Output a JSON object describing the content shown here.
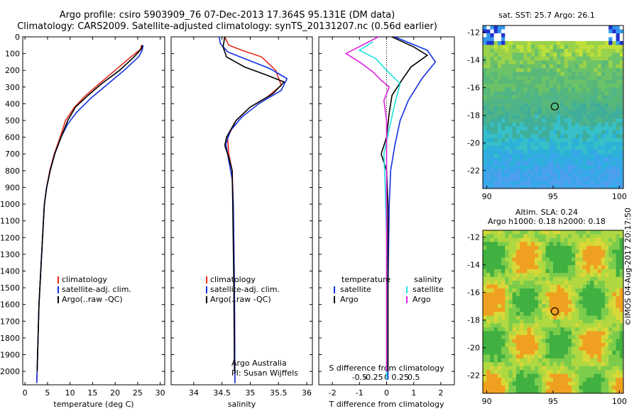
{
  "header": {
    "title1": "Argo profile: csiro 5903909_76 07-Dec-2013 17.364S 95.131E (DM data)",
    "title2": "Climatology: CARS2009. Satellite-adjusted climatology: synTS_20131207.nc (0.56d earlier)"
  },
  "colors": {
    "climatology": "#e8291d",
    "satellite": "#1030e0",
    "argo": "#000000",
    "sal_satellite": "#20e0e0",
    "sal_argo": "#e020e0"
  },
  "chart_data": [
    {
      "type": "line",
      "name_key": "temperature-profile",
      "xlabel": "temperature (deg C)",
      "ylabel": "",
      "xlim": [
        -0.5,
        31
      ],
      "ylim": [
        2080,
        0
      ],
      "xticks": [
        0,
        5,
        10,
        15,
        20,
        25,
        30
      ],
      "yticks": [
        0,
        100,
        200,
        300,
        400,
        500,
        600,
        700,
        800,
        900,
        1000,
        1100,
        1200,
        1300,
        1400,
        1500,
        1600,
        1700,
        1800,
        1900,
        2000
      ],
      "legend": {
        "position": "lower-middle",
        "entries": [
          "climatology",
          "satellite-adj. clim.",
          "Argo(..raw -QC)"
        ]
      },
      "series": [
        {
          "name": "climatology",
          "color": "#e8291d",
          "points": [
            [
              25.9,
              50
            ],
            [
              25.6,
              75
            ],
            [
              23.5,
              120
            ],
            [
              20.0,
              200
            ],
            [
              16.5,
              280
            ],
            [
              13.5,
              350
            ],
            [
              11.0,
              420
            ],
            [
              9.0,
              500
            ],
            [
              7.8,
              600
            ],
            [
              6.5,
              700
            ],
            [
              5.5,
              800
            ],
            [
              4.8,
              900
            ],
            [
              4.3,
              1000
            ],
            [
              3.9,
              1200
            ],
            [
              3.5,
              1400
            ],
            [
              3.1,
              1600
            ],
            [
              2.9,
              1800
            ],
            [
              2.7,
              2000
            ],
            [
              2.6,
              2070
            ]
          ]
        },
        {
          "name": "satellite-adj. clim.",
          "color": "#1030e0",
          "points": [
            [
              26.2,
              50
            ],
            [
              26.0,
              80
            ],
            [
              25.2,
              120
            ],
            [
              22.0,
              200
            ],
            [
              18.0,
              290
            ],
            [
              14.5,
              370
            ],
            [
              11.5,
              450
            ],
            [
              9.5,
              520
            ],
            [
              8.0,
              600
            ],
            [
              6.6,
              700
            ],
            [
              5.6,
              800
            ],
            [
              4.8,
              900
            ],
            [
              4.3,
              1000
            ],
            [
              3.9,
              1200
            ],
            [
              3.5,
              1400
            ],
            [
              3.1,
              1600
            ],
            [
              2.9,
              1800
            ],
            [
              2.7,
              2000
            ],
            [
              2.6,
              2070
            ]
          ]
        },
        {
          "name": "Argo(..raw -QC)",
          "color": "#000000",
          "points": [
            [
              26.0,
              50
            ],
            [
              25.9,
              70
            ],
            [
              24.2,
              120
            ],
            [
              21.0,
              200
            ],
            [
              17.0,
              280
            ],
            [
              14.0,
              350
            ],
            [
              11.2,
              420
            ],
            [
              9.5,
              500
            ],
            [
              8.0,
              600
            ],
            [
              6.6,
              700
            ],
            [
              5.6,
              800
            ],
            [
              4.8,
              900
            ],
            [
              4.3,
              1000
            ],
            [
              3.9,
              1200
            ],
            [
              3.5,
              1400
            ],
            [
              3.1,
              1600
            ],
            [
              2.9,
              1800
            ],
            [
              2.7,
              2000
            ]
          ]
        }
      ]
    },
    {
      "type": "line",
      "name_key": "salinity-profile",
      "xlabel": "salinity",
      "ylabel": "",
      "xlim": [
        33.6,
        36.1
      ],
      "ylim": [
        2080,
        0
      ],
      "xticks": [
        34,
        34.5,
        35,
        35.5,
        36
      ],
      "legend": {
        "position": "lower-middle",
        "entries": [
          "climatology",
          "satellite-adj. clim.",
          "Argo(..raw -QC)"
        ]
      },
      "annotation": [
        "Argo Australia",
        "PI: Susan Wijffels"
      ],
      "series": [
        {
          "name": "climatology",
          "color": "#e8291d",
          "points": [
            [
              34.55,
              0
            ],
            [
              34.62,
              50
            ],
            [
              34.85,
              80
            ],
            [
              35.2,
              120
            ],
            [
              35.45,
              200
            ],
            [
              35.55,
              290
            ],
            [
              35.3,
              360
            ],
            [
              35.0,
              420
            ],
            [
              34.75,
              500
            ],
            [
              34.6,
              600
            ],
            [
              34.62,
              700
            ],
            [
              34.68,
              800
            ],
            [
              34.7,
              1000
            ],
            [
              34.72,
              1500
            ],
            [
              34.73,
              2070
            ]
          ]
        },
        {
          "name": "satellite-adj. clim.",
          "color": "#1030e0",
          "points": [
            [
              34.45,
              0
            ],
            [
              34.47,
              40
            ],
            [
              34.6,
              90
            ],
            [
              34.9,
              130
            ],
            [
              35.35,
              190
            ],
            [
              35.65,
              250
            ],
            [
              35.55,
              320
            ],
            [
              35.15,
              400
            ],
            [
              34.85,
              480
            ],
            [
              34.65,
              560
            ],
            [
              34.57,
              640
            ],
            [
              34.62,
              740
            ],
            [
              34.68,
              850
            ],
            [
              34.7,
              1000
            ],
            [
              34.72,
              1500
            ],
            [
              34.73,
              2070
            ]
          ]
        },
        {
          "name": "Argo(..raw -QC)",
          "color": "#000000",
          "points": [
            [
              34.55,
              0
            ],
            [
              34.52,
              60
            ],
            [
              34.58,
              120
            ],
            [
              34.9,
              180
            ],
            [
              35.3,
              230
            ],
            [
              35.6,
              270
            ],
            [
              35.4,
              340
            ],
            [
              35.0,
              420
            ],
            [
              34.75,
              500
            ],
            [
              34.58,
              600
            ],
            [
              34.55,
              650
            ],
            [
              34.62,
              720
            ],
            [
              34.68,
              800
            ],
            [
              34.69,
              1000
            ],
            [
              34.71,
              1500
            ],
            [
              34.72,
              2000
            ]
          ]
        }
      ]
    },
    {
      "type": "line",
      "name_key": "difference-profile",
      "xlabel": "T difference from climatology",
      "xlabel_top": "S difference from climatology",
      "xlim": [
        -2.5,
        2.5
      ],
      "ylim": [
        2080,
        0
      ],
      "xticks_t": [
        -2,
        -1,
        0,
        1,
        2
      ],
      "xticks_s": [
        "-0.5",
        "-0.25",
        "0",
        "0.25",
        "0.5"
      ],
      "legend": {
        "position": "lower-middle",
        "entries": {
          "temperature": [
            "satellite",
            "Argo"
          ],
          "salinity": [
            "satellite",
            "Argo"
          ]
        }
      },
      "series": [
        {
          "name": "temperature satellite",
          "color": "#1030e0",
          "points": [
            [
              0.3,
              0
            ],
            [
              1.5,
              80
            ],
            [
              1.8,
              150
            ],
            [
              1.3,
              250
            ],
            [
              0.8,
              380
            ],
            [
              0.5,
              500
            ],
            [
              0.3,
              650
            ],
            [
              0.15,
              800
            ],
            [
              0.1,
              1000
            ],
            [
              0.05,
              1500
            ],
            [
              0.05,
              2050
            ]
          ]
        },
        {
          "name": "temperature Argo",
          "color": "#000000",
          "points": [
            [
              0.2,
              0
            ],
            [
              1.0,
              60
            ],
            [
              1.5,
              110
            ],
            [
              0.9,
              180
            ],
            [
              0.6,
              250
            ],
            [
              0.2,
              350
            ],
            [
              0.1,
              450
            ],
            [
              0.0,
              600
            ],
            [
              -0.2,
              700
            ],
            [
              0.0,
              800
            ],
            [
              0.05,
              1000
            ],
            [
              0.05,
              1500
            ],
            [
              0.05,
              2000
            ]
          ]
        },
        {
          "name": "salinity satellite",
          "color": "#20e0e0",
          "points": [
            [
              -0.5,
              30
            ],
            [
              -1.0,
              80
            ],
            [
              -0.4,
              130
            ],
            [
              0.0,
              200
            ],
            [
              0.5,
              280
            ],
            [
              0.3,
              400
            ],
            [
              0.1,
              550
            ],
            [
              -0.1,
              700
            ],
            [
              -0.05,
              900
            ],
            [
              0.0,
              1200
            ],
            [
              0.0,
              1600
            ],
            [
              0.0,
              2050
            ]
          ]
        },
        {
          "name": "salinity Argo",
          "color": "#e020e0",
          "points": [
            [
              -0.3,
              0
            ],
            [
              -1.5,
              100
            ],
            [
              -1.0,
              150
            ],
            [
              -0.5,
              210
            ],
            [
              -0.2,
              260
            ],
            [
              0.1,
              300
            ],
            [
              -0.1,
              380
            ],
            [
              0.0,
              500
            ],
            [
              0.0,
              700
            ],
            [
              0.0,
              1000
            ],
            [
              0.0,
              1600
            ],
            [
              0.0,
              2000
            ]
          ]
        }
      ]
    },
    {
      "type": "heatmap",
      "name_key": "sst-map",
      "title": "sat. SST: 25.7 Argo: 26.1",
      "xlim": [
        89.7,
        100.3
      ],
      "ylim": [
        -23.3,
        -11.5
      ],
      "xticks": [
        90,
        95,
        100
      ],
      "yticks": [
        -12,
        -14,
        -16,
        -18,
        -20,
        -22
      ],
      "marker": {
        "lon": 95.131,
        "lat": -17.364
      }
    },
    {
      "type": "heatmap",
      "name_key": "sla-map",
      "title1": "Altim. SLA: 0.24",
      "title2": "Argo h1000: 0.18 h2000: 0.18",
      "xlim": [
        89.7,
        100.3
      ],
      "ylim": [
        -23.3,
        -11.5
      ],
      "xticks": [
        90,
        95,
        100
      ],
      "yticks": [
        -12,
        -14,
        -16,
        -18,
        -20,
        -22
      ],
      "marker": {
        "lon": 95.131,
        "lat": -17.364
      }
    }
  ],
  "footer": {
    "imos": "©IMOS 04-Aug-2017 20:17:50"
  }
}
